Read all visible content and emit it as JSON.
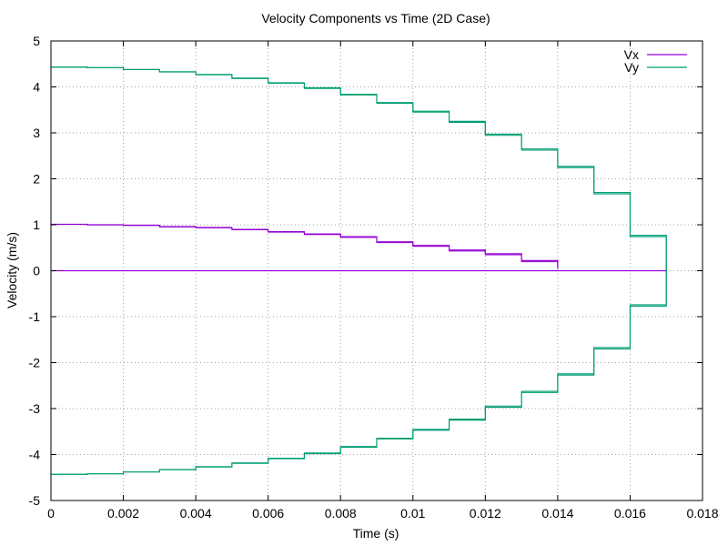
{
  "chart_data": {
    "type": "line",
    "title": "Velocity Components vs Time (2D Case)",
    "xlabel": "Time (s)",
    "ylabel": "Velocity (m/s)",
    "xlim": [
      0,
      0.018
    ],
    "ylim": [
      -5,
      5
    ],
    "grid": true,
    "legend_position": "top-right",
    "x_ticks": [
      0,
      0.002,
      0.004,
      0.006,
      0.008,
      0.01,
      0.012,
      0.014,
      0.016,
      0.018
    ],
    "x_tick_labels": [
      "0",
      "0.002",
      "0.004",
      "0.006",
      "0.008",
      "0.01",
      "0.012",
      "0.014",
      "0.016",
      "0.018"
    ],
    "y_ticks": [
      5,
      4,
      3,
      2,
      1,
      0,
      -1,
      -2,
      -3,
      -4,
      -5
    ],
    "y_tick_labels": [
      "5",
      "4",
      "3",
      "2",
      "1",
      "0",
      "-1",
      "-2",
      "-3",
      "-4",
      "-5"
    ],
    "series": [
      {
        "name": "Vx",
        "color": "#9400d3",
        "segments": [
          {
            "x": [
              0,
              0.001,
              0.002,
              0.003,
              0.004,
              0.005,
              0.006,
              0.007,
              0.008,
              0.009,
              0.01,
              0.011,
              0.012,
              0.013,
              0.014
            ],
            "y": [
              1.01,
              1.0,
              0.99,
              0.96,
              0.94,
              0.9,
              0.85,
              0.8,
              0.74,
              0.63,
              0.55,
              0.45,
              0.37,
              0.22,
              0.06
            ]
          },
          {
            "x": [
              0,
              0.017
            ],
            "y": [
              0,
              0
            ]
          }
        ]
      },
      {
        "name": "Vy",
        "color": "#009e73",
        "segments": [
          {
            "x": [
              0,
              0.001,
              0.002,
              0.003,
              0.004,
              0.005,
              0.006,
              0.007,
              0.008,
              0.009,
              0.01,
              0.011,
              0.012,
              0.013,
              0.014,
              0.015,
              0.016,
              0.017
            ],
            "y": [
              4.43,
              4.42,
              4.38,
              4.33,
              4.27,
              4.19,
              4.09,
              3.98,
              3.84,
              3.66,
              3.47,
              3.25,
              2.97,
              2.65,
              2.27,
              1.7,
              0.77,
              0.7
            ]
          },
          {
            "x": [
              0,
              0.001,
              0.002,
              0.003,
              0.004,
              0.005,
              0.006,
              0.007,
              0.008,
              0.009,
              0.01,
              0.011,
              0.012,
              0.013,
              0.014,
              0.015,
              0.016,
              0.017
            ],
            "y": [
              -4.43,
              -4.42,
              -4.38,
              -4.33,
              -4.27,
              -4.19,
              -4.09,
              -3.98,
              -3.84,
              -3.66,
              -3.47,
              -3.25,
              -2.97,
              -2.65,
              -2.27,
              -1.7,
              -0.77,
              -0.7
            ]
          },
          {
            "x": [
              0.017,
              0.017
            ],
            "y": [
              0.7,
              -0.7
            ]
          }
        ]
      }
    ]
  }
}
